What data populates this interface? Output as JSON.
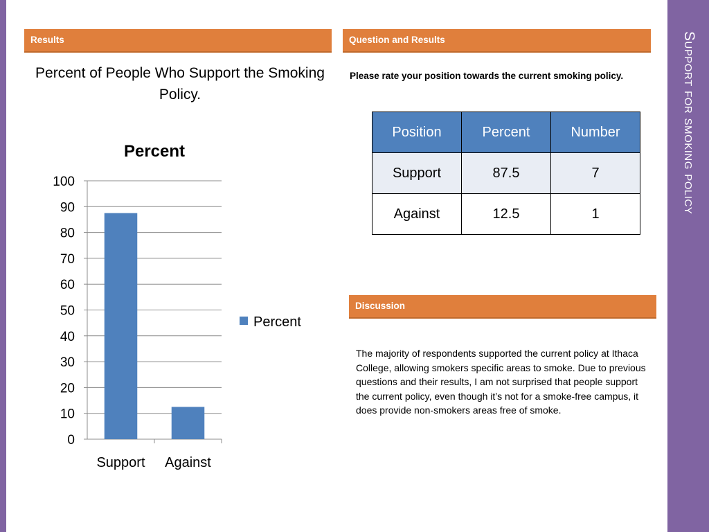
{
  "slide": {
    "title": "Support for smoking policy",
    "headers": {
      "results": "Results",
      "question_results": "Question and Results",
      "discussion": "Discussion"
    },
    "chart_heading": "Percent of People Who Support the Smoking Policy.",
    "question": "Please rate your position towards the current smoking policy.",
    "table": {
      "columns": [
        "Position",
        "Percent",
        "Number"
      ],
      "rows": [
        [
          "Support",
          "87.5",
          "7"
        ],
        [
          "Against",
          "12.5",
          "1"
        ]
      ]
    },
    "discussion_text": "The majority of respondents supported the current policy at Ithaca College, allowing smokers specific areas to smoke. Due to previous questions and their results, I am not surprised that people support the current policy, even though it’s not for a smoke-free campus, it does provide non-smokers areas free of smoke.",
    "colors": {
      "accent": "#8064a2",
      "header": "#e07f3c",
      "bar": "#4f81bd"
    }
  },
  "chart_data": {
    "type": "bar",
    "title": "Percent",
    "categories": [
      "Support",
      "Against"
    ],
    "series": [
      {
        "name": "Percent",
        "values": [
          87.5,
          12.5
        ]
      }
    ],
    "ylim": [
      0,
      100
    ],
    "yticks": [
      0,
      10,
      20,
      30,
      40,
      50,
      60,
      70,
      80,
      90,
      100
    ],
    "grid": true,
    "legend": "right"
  }
}
